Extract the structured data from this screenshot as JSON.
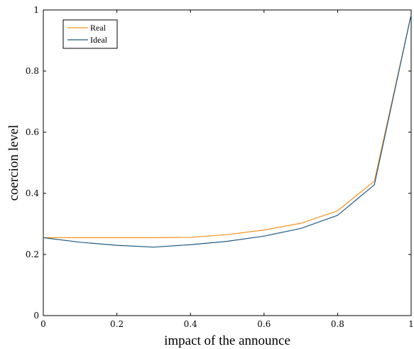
{
  "chart_data": {
    "type": "line",
    "title": "",
    "xlabel": "impact of the announce",
    "ylabel": "coercion level",
    "xlim": [
      0,
      1
    ],
    "ylim": [
      0,
      1
    ],
    "x": [
      0,
      0.1,
      0.2,
      0.3,
      0.4,
      0.5,
      0.6,
      0.7,
      0.8,
      0.9,
      1.0
    ],
    "xticks": [
      "0",
      "0.2",
      "0.4",
      "0.6",
      "0.8",
      "1"
    ],
    "yticks": [
      "0",
      "0.2",
      "0.4",
      "0.6",
      "0.8",
      "1"
    ],
    "xtick_values": [
      0,
      0.2,
      0.4,
      0.6,
      0.8,
      1
    ],
    "ytick_values": [
      0,
      0.2,
      0.4,
      0.6,
      0.8,
      1
    ],
    "grid": false,
    "legend_position": "top-left",
    "series": [
      {
        "name": "Real",
        "color": "#f5921e",
        "values": [
          0.255,
          0.255,
          0.255,
          0.255,
          0.256,
          0.265,
          0.28,
          0.302,
          0.343,
          0.44,
          0.985
        ]
      },
      {
        "name": "Ideal",
        "color": "#1f5a85",
        "values": [
          0.255,
          0.24,
          0.23,
          0.224,
          0.232,
          0.243,
          0.26,
          0.285,
          0.328,
          0.428,
          0.985
        ]
      }
    ]
  }
}
